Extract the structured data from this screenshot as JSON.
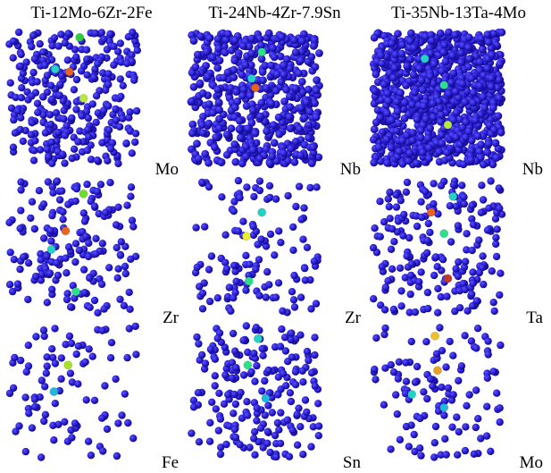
{
  "columns": [
    {
      "title": "Ti-12Mo-6Zr-2Fe",
      "panels": [
        {
          "element": "Mo",
          "density": 330,
          "seed": 11,
          "hot": [
            [
              "#2ecc40",
              0.55,
              0.04
            ],
            [
              "#e8641e",
              0.47,
              0.3
            ],
            [
              "#22d3c5",
              0.36,
              0.28
            ],
            [
              "#b7e83a",
              0.58,
              0.5
            ]
          ]
        },
        {
          "element": "Zr",
          "density": 170,
          "seed": 23,
          "hot": [
            [
              "#6fe02a",
              0.58,
              0.1
            ],
            [
              "#e8641e",
              0.44,
              0.38
            ],
            [
              "#22d3c5",
              0.33,
              0.52
            ],
            [
              "#2ce08a",
              0.52,
              0.84
            ]
          ]
        },
        {
          "element": "Fe",
          "density": 90,
          "seed": 37,
          "hot": [
            [
              "#a8e02a",
              0.46,
              0.3
            ],
            [
              "#22b8d8",
              0.35,
              0.5
            ]
          ]
        }
      ]
    },
    {
      "title": "Ti-24Nb-4Zr-7.9Sn",
      "panels": [
        {
          "element": "Nb",
          "density": 520,
          "seed": 51,
          "hot": [
            [
              "#22d3c5",
              0.47,
              0.35
            ],
            [
              "#2ce08a",
              0.55,
              0.15
            ],
            [
              "#e8641e",
              0.5,
              0.42
            ]
          ]
        },
        {
          "element": "Zr",
          "density": 120,
          "seed": 63,
          "hot": [
            [
              "#e8f02a",
              0.43,
              0.42
            ],
            [
              "#2ce08a",
              0.45,
              0.76
            ],
            [
              "#22d3c5",
              0.55,
              0.24
            ]
          ]
        },
        {
          "element": "Sn",
          "density": 200,
          "seed": 79,
          "hot": [
            [
              "#22d3c5",
              0.52,
              0.1
            ],
            [
              "#2ce08a",
              0.44,
              0.3
            ],
            [
              "#22b8d8",
              0.58,
              0.55
            ]
          ]
        }
      ]
    },
    {
      "title": "Ti-35Nb-13Ta-4Mo",
      "panels": [
        {
          "element": "Nb",
          "density": 900,
          "seed": 91,
          "hot": [
            [
              "#22d3c5",
              0.4,
              0.2
            ],
            [
              "#2ce08a",
              0.55,
              0.4
            ],
            [
              "#b7e83a",
              0.58,
              0.7
            ]
          ]
        },
        {
          "element": "Ta",
          "density": 200,
          "seed": 103,
          "hot": [
            [
              "#e8641e",
              0.45,
              0.24
            ],
            [
              "#c0392b",
              0.58,
              0.74
            ],
            [
              "#2ce08a",
              0.55,
              0.4
            ],
            [
              "#22d3c5",
              0.62,
              0.12
            ]
          ]
        },
        {
          "element": "Mo",
          "density": 110,
          "seed": 117,
          "hot": [
            [
              "#f0c02a",
              0.48,
              0.08
            ],
            [
              "#e8a02a",
              0.5,
              0.34
            ],
            [
              "#22d3c5",
              0.3,
              0.52
            ],
            [
              "#22b8d8",
              0.55,
              0.62
            ]
          ]
        }
      ]
    }
  ],
  "colors": {
    "atom": "#2a1fd0",
    "atom_dark": "#12088a",
    "atom_light": "#5a52ff"
  }
}
